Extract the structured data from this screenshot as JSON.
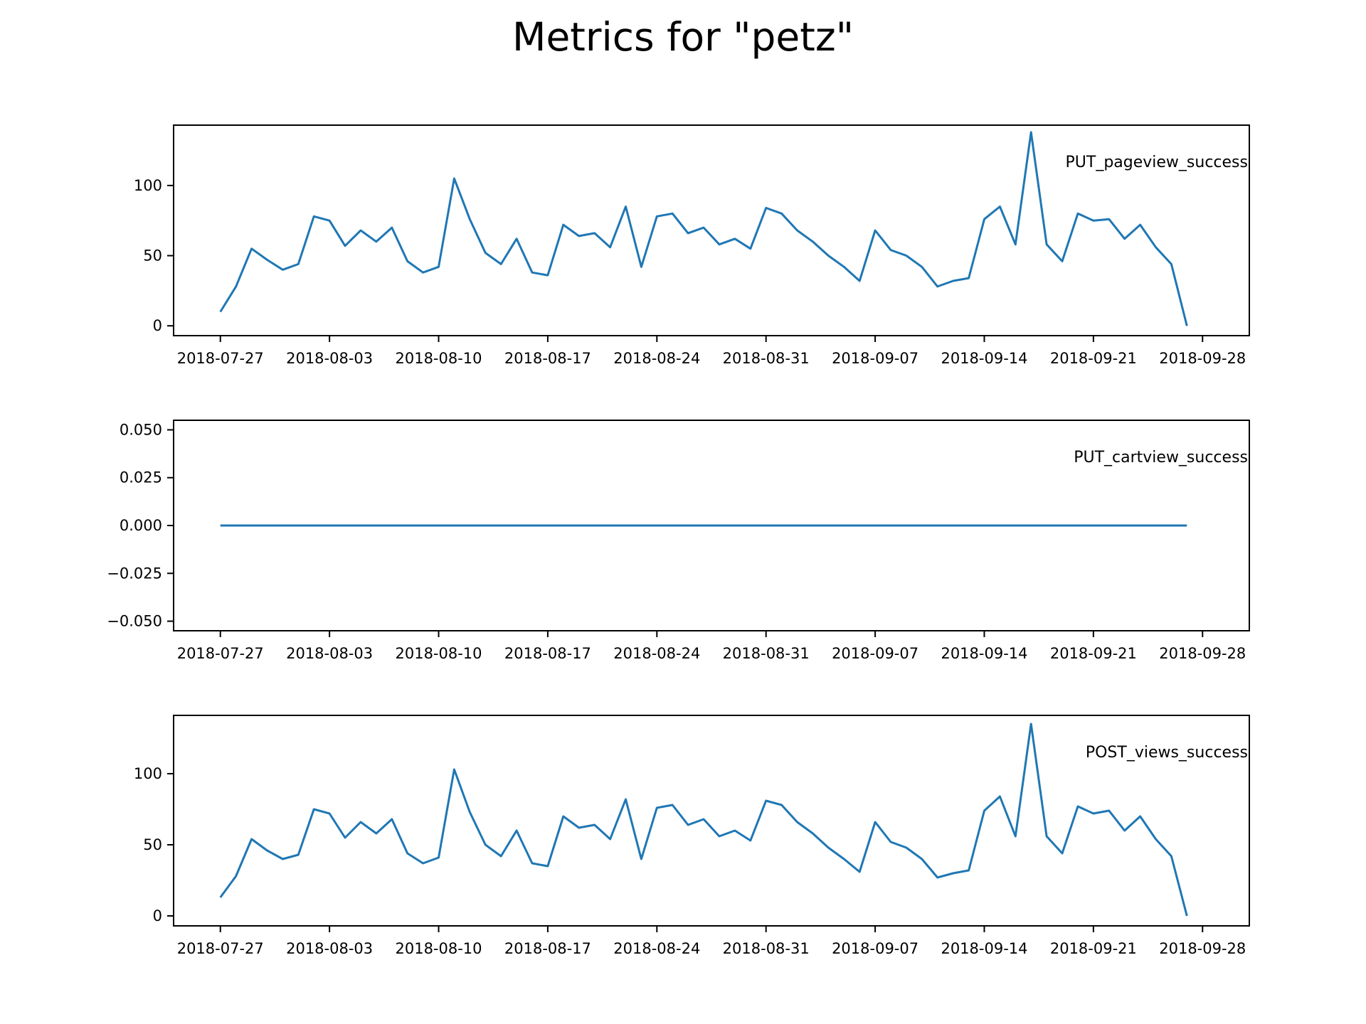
{
  "title": "Metrics for \"petz\"",
  "colors": {
    "line": "#1f77b4",
    "axes": "#000000",
    "background": "#ffffff"
  },
  "chart_data": [
    {
      "type": "line",
      "series": [
        {
          "name": "PUT_pageview_success",
          "x": [
            "2018-07-27",
            "2018-07-28",
            "2018-07-29",
            "2018-07-30",
            "2018-07-31",
            "2018-08-01",
            "2018-08-02",
            "2018-08-03",
            "2018-08-04",
            "2018-08-05",
            "2018-08-06",
            "2018-08-07",
            "2018-08-08",
            "2018-08-09",
            "2018-08-10",
            "2018-08-11",
            "2018-08-12",
            "2018-08-13",
            "2018-08-14",
            "2018-08-15",
            "2018-08-16",
            "2018-08-17",
            "2018-08-18",
            "2018-08-19",
            "2018-08-20",
            "2018-08-21",
            "2018-08-22",
            "2018-08-23",
            "2018-08-24",
            "2018-08-25",
            "2018-08-26",
            "2018-08-27",
            "2018-08-28",
            "2018-08-29",
            "2018-08-30",
            "2018-08-31",
            "2018-09-01",
            "2018-09-02",
            "2018-09-03",
            "2018-09-04",
            "2018-09-05",
            "2018-09-06",
            "2018-09-07",
            "2018-09-08",
            "2018-09-09",
            "2018-09-10",
            "2018-09-11",
            "2018-09-12",
            "2018-09-13",
            "2018-09-14",
            "2018-09-15",
            "2018-09-16",
            "2018-09-17",
            "2018-09-18",
            "2018-09-19",
            "2018-09-20",
            "2018-09-21",
            "2018-09-22",
            "2018-09-23",
            "2018-09-24",
            "2018-09-25",
            "2018-09-26",
            "2018-09-27"
          ],
          "values": [
            10,
            28,
            55,
            47,
            40,
            44,
            78,
            75,
            57,
            68,
            60,
            70,
            46,
            38,
            42,
            105,
            76,
            52,
            44,
            62,
            38,
            36,
            72,
            64,
            66,
            56,
            85,
            42,
            78,
            80,
            66,
            70,
            58,
            62,
            55,
            84,
            80,
            68,
            60,
            50,
            42,
            32,
            68,
            54,
            50,
            42,
            28,
            32,
            34,
            76,
            85,
            58,
            138,
            58,
            46,
            80,
            75,
            76,
            62,
            72,
            56,
            44,
            0
          ]
        }
      ],
      "xlabel": "",
      "ylabel": "",
      "ylim": [
        -7,
        143
      ],
      "yticks": [
        0,
        50,
        100
      ],
      "ytick_labels": [
        "0",
        "50",
        "100"
      ],
      "xlim": [
        "2018-07-24",
        "2018-10-01"
      ],
      "xticks": [
        "2018-07-27",
        "2018-08-03",
        "2018-08-10",
        "2018-08-17",
        "2018-08-24",
        "2018-08-31",
        "2018-09-07",
        "2018-09-14",
        "2018-09-21",
        "2018-09-28"
      ],
      "grid": false,
      "legend": "top-right"
    },
    {
      "type": "line",
      "series": [
        {
          "name": "PUT_cartview_success",
          "x": [
            "2018-07-27",
            "2018-09-27"
          ],
          "values": [
            0,
            0
          ]
        }
      ],
      "xlabel": "",
      "ylabel": "",
      "ylim": [
        -0.055,
        0.055
      ],
      "yticks": [
        -0.05,
        -0.025,
        0,
        0.025,
        0.05
      ],
      "ytick_labels": [
        "−0.050",
        "−0.025",
        "0.000",
        "0.025",
        "0.050"
      ],
      "xlim": [
        "2018-07-24",
        "2018-10-01"
      ],
      "xticks": [
        "2018-07-27",
        "2018-08-03",
        "2018-08-10",
        "2018-08-17",
        "2018-08-24",
        "2018-08-31",
        "2018-09-07",
        "2018-09-14",
        "2018-09-21",
        "2018-09-28"
      ],
      "grid": false,
      "legend": "top-right"
    },
    {
      "type": "line",
      "series": [
        {
          "name": "POST_views_success",
          "x": [
            "2018-07-27",
            "2018-07-28",
            "2018-07-29",
            "2018-07-30",
            "2018-07-31",
            "2018-08-01",
            "2018-08-02",
            "2018-08-03",
            "2018-08-04",
            "2018-08-05",
            "2018-08-06",
            "2018-08-07",
            "2018-08-08",
            "2018-08-09",
            "2018-08-10",
            "2018-08-11",
            "2018-08-12",
            "2018-08-13",
            "2018-08-14",
            "2018-08-15",
            "2018-08-16",
            "2018-08-17",
            "2018-08-18",
            "2018-08-19",
            "2018-08-20",
            "2018-08-21",
            "2018-08-22",
            "2018-08-23",
            "2018-08-24",
            "2018-08-25",
            "2018-08-26",
            "2018-08-27",
            "2018-08-28",
            "2018-08-29",
            "2018-08-30",
            "2018-08-31",
            "2018-09-01",
            "2018-09-02",
            "2018-09-03",
            "2018-09-04",
            "2018-09-05",
            "2018-09-06",
            "2018-09-07",
            "2018-09-08",
            "2018-09-09",
            "2018-09-10",
            "2018-09-11",
            "2018-09-12",
            "2018-09-13",
            "2018-09-14",
            "2018-09-15",
            "2018-09-16",
            "2018-09-17",
            "2018-09-18",
            "2018-09-19",
            "2018-09-20",
            "2018-09-21",
            "2018-09-22",
            "2018-09-23",
            "2018-09-24",
            "2018-09-25",
            "2018-09-26",
            "2018-09-27"
          ],
          "values": [
            13,
            28,
            54,
            46,
            40,
            43,
            75,
            72,
            55,
            66,
            58,
            68,
            44,
            37,
            41,
            103,
            73,
            50,
            42,
            60,
            37,
            35,
            70,
            62,
            64,
            54,
            82,
            40,
            76,
            78,
            64,
            68,
            56,
            60,
            53,
            81,
            78,
            66,
            58,
            48,
            40,
            31,
            66,
            52,
            48,
            40,
            27,
            30,
            32,
            74,
            84,
            56,
            135,
            56,
            44,
            77,
            72,
            74,
            60,
            70,
            54,
            42,
            0
          ]
        }
      ],
      "xlabel": "",
      "ylabel": "",
      "ylim": [
        -7,
        141
      ],
      "yticks": [
        0,
        50,
        100
      ],
      "ytick_labels": [
        "0",
        "50",
        "100"
      ],
      "xlim": [
        "2018-07-24",
        "2018-10-01"
      ],
      "xticks": [
        "2018-07-27",
        "2018-08-03",
        "2018-08-10",
        "2018-08-17",
        "2018-08-24",
        "2018-08-31",
        "2018-09-07",
        "2018-09-14",
        "2018-09-21",
        "2018-09-28"
      ],
      "grid": false,
      "legend": "top-right"
    }
  ]
}
